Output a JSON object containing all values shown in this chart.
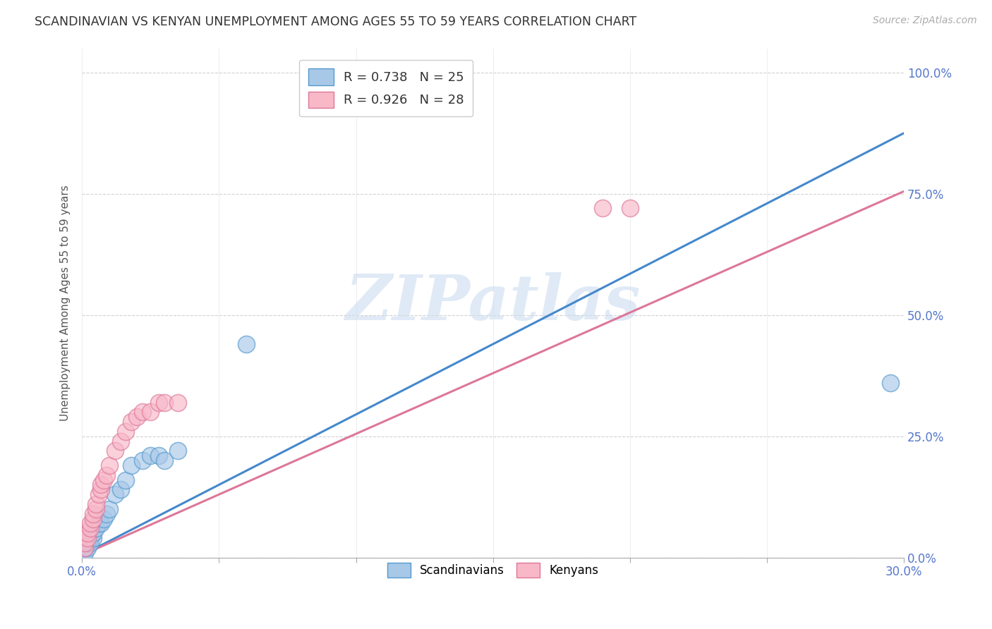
{
  "title": "SCANDINAVIAN VS KENYAN UNEMPLOYMENT AMONG AGES 55 TO 59 YEARS CORRELATION CHART",
  "source": "Source: ZipAtlas.com",
  "ylabel": "Unemployment Among Ages 55 to 59 years",
  "xlim": [
    0.0,
    0.3
  ],
  "ylim": [
    0.0,
    1.05
  ],
  "xticks": [
    0.0,
    0.05,
    0.1,
    0.15,
    0.2,
    0.25,
    0.3
  ],
  "xtick_labels_show": [
    "0.0%",
    "",
    "",
    "",
    "",
    "",
    "30.0%"
  ],
  "yticks": [
    0.0,
    0.25,
    0.5,
    0.75,
    1.0
  ],
  "ytick_labels": [
    "0.0%",
    "25.0%",
    "50.0%",
    "75.0%",
    "100.0%"
  ],
  "blue_face": "#a8c8e8",
  "blue_edge": "#5599cc",
  "blue_line": "#4488cc",
  "pink_face": "#f8b8c8",
  "pink_edge": "#dd7799",
  "pink_line": "#dd7799",
  "axis_tick_color": "#5577cc",
  "watermark_text": "ZIPatlas",
  "watermark_color": "#ccddf0",
  "R_blue": 0.738,
  "N_blue": 25,
  "R_pink": 0.926,
  "N_pink": 28,
  "blue_line_slope": 2.9,
  "blue_line_intercept": 0.005,
  "pink_line_slope": 2.5,
  "pink_line_intercept": 0.005,
  "scandinavians_x": [
    0.001,
    0.001,
    0.002,
    0.002,
    0.003,
    0.003,
    0.004,
    0.004,
    0.005,
    0.006,
    0.007,
    0.008,
    0.009,
    0.01,
    0.012,
    0.014,
    0.016,
    0.018,
    0.022,
    0.025,
    0.028,
    0.03,
    0.035,
    0.06,
    0.295
  ],
  "scandinavians_y": [
    0.01,
    0.02,
    0.02,
    0.03,
    0.03,
    0.04,
    0.04,
    0.05,
    0.06,
    0.07,
    0.07,
    0.08,
    0.09,
    0.1,
    0.13,
    0.14,
    0.16,
    0.19,
    0.2,
    0.21,
    0.21,
    0.2,
    0.22,
    0.44,
    0.36
  ],
  "kenyans_x": [
    0.001,
    0.001,
    0.002,
    0.002,
    0.003,
    0.003,
    0.004,
    0.004,
    0.005,
    0.005,
    0.006,
    0.007,
    0.007,
    0.008,
    0.009,
    0.01,
    0.012,
    0.014,
    0.016,
    0.018,
    0.02,
    0.022,
    0.025,
    0.028,
    0.03,
    0.035,
    0.19,
    0.2
  ],
  "kenyans_y": [
    0.02,
    0.03,
    0.04,
    0.05,
    0.06,
    0.07,
    0.08,
    0.09,
    0.1,
    0.11,
    0.13,
    0.14,
    0.15,
    0.16,
    0.17,
    0.19,
    0.22,
    0.24,
    0.26,
    0.28,
    0.29,
    0.3,
    0.3,
    0.32,
    0.32,
    0.32,
    0.72,
    0.72
  ]
}
